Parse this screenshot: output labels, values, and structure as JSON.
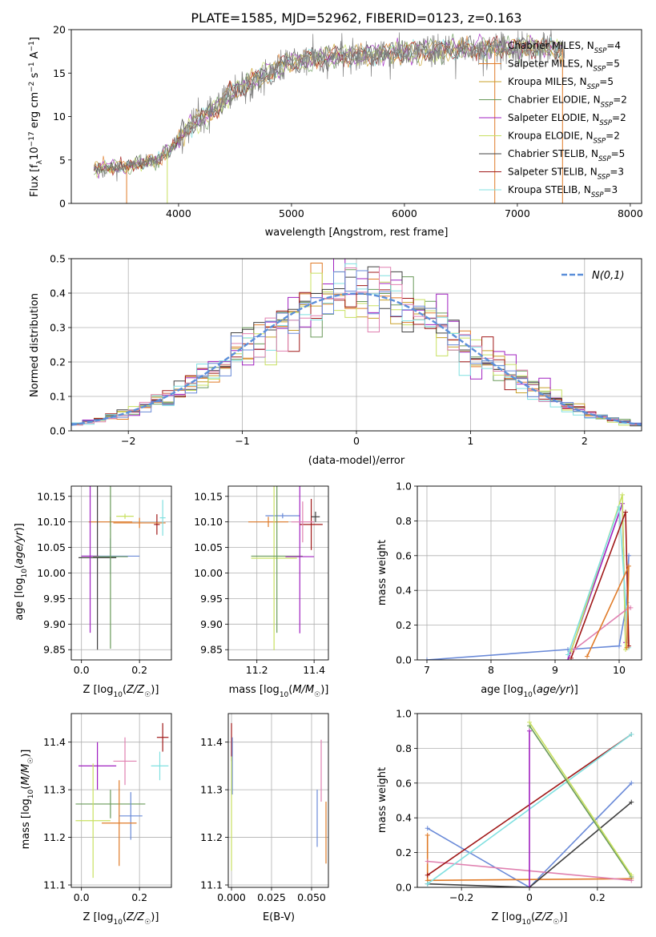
{
  "figure": {
    "title": "PLATE=1585, MJD=52962, FIBERID=0123, z=0.163"
  },
  "colors": {
    "series": [
      "#808080",
      "#e07b28",
      "#c8a028",
      "#6a9a5a",
      "#a020c0",
      "#c8e060",
      "#404040",
      "#a01818",
      "#80e0e0"
    ],
    "norm": "#5b8fd9",
    "pink": "#e080b0",
    "blue": "#6a8ad8",
    "grid": "#b0b0b0"
  },
  "chart_data": [
    {
      "type": "line",
      "panel": "spectrum",
      "xlabel": "wavelength [Angstrom, rest frame]",
      "ylabel": "Flux [f_λ 10^-17 erg cm^-2 s^-1 A^-1]",
      "xlim": [
        3050,
        8100
      ],
      "ylim": [
        0,
        20
      ],
      "xticks": [
        4000,
        5000,
        6000,
        7000,
        8000
      ],
      "yticks": [
        0,
        5,
        10,
        15,
        20
      ],
      "grid": false,
      "legend_position": "top-right",
      "series": [
        {
          "name": "Chabrier MILES, N_SSP=4"
        },
        {
          "name": "Salpeter MILES, N_SSP=5"
        },
        {
          "name": "Kroupa MILES, N_SSP=5"
        },
        {
          "name": "Chabrier ELODIE, N_SSP=2"
        },
        {
          "name": "Salpeter ELODIE, N_SSP=2"
        },
        {
          "name": "Kroupa ELODIE, N_SSP=2"
        },
        {
          "name": "Chabrier STELIB, N_SSP=5"
        },
        {
          "name": "Salpeter STELIB, N_SSP=3"
        },
        {
          "name": "Kroupa STELIB, N_SSP=3"
        }
      ],
      "continuum": [
        [
          3250,
          4.0
        ],
        [
          3500,
          4.2
        ],
        [
          3800,
          5.0
        ],
        [
          3950,
          6.5
        ],
        [
          4100,
          9.0
        ],
        [
          4300,
          10.5
        ],
        [
          4500,
          13.0
        ],
        [
          4800,
          15.0
        ],
        [
          5000,
          16.3
        ],
        [
          5300,
          16.8
        ],
        [
          5600,
          17.0
        ],
        [
          5900,
          17.3
        ],
        [
          6200,
          17.5
        ],
        [
          6500,
          17.7
        ],
        [
          6800,
          17.9
        ],
        [
          7100,
          18.0
        ],
        [
          7400,
          17.8
        ]
      ]
    },
    {
      "type": "line",
      "panel": "residual-distribution",
      "xlabel": "(data-model)/error",
      "ylabel": "Normed distribution",
      "xlim": [
        -2.5,
        2.5
      ],
      "ylim": [
        0,
        0.5
      ],
      "xticks": [
        -2,
        -1,
        0,
        1,
        2
      ],
      "yticks": [
        0.0,
        0.1,
        0.2,
        0.3,
        0.4,
        0.5
      ],
      "grid": true,
      "legend": "N(0,1)",
      "legend_position": "top-right",
      "bin_width": 0.1
    },
    {
      "type": "scatter",
      "panel": "age-vs-Z",
      "xlabel": "Z [log10(Z/Z☉)]",
      "ylabel": "age [log10(age/yr)]",
      "xlim": [
        -0.035,
        0.31
      ],
      "ylim": [
        9.83,
        10.17
      ],
      "xticks": [
        0.0,
        0.2
      ],
      "yticks": [
        9.85,
        9.9,
        9.95,
        10.0,
        10.05,
        10.1,
        10.15
      ],
      "grid": true,
      "points": [
        {
          "x": 0.1,
          "y": 10.1,
          "xerr": 0.075,
          "yerr": 0.01
        },
        {
          "x": 0.1,
          "y": 10.033,
          "xerr": 0.1,
          "yerr": 0.035
        },
        {
          "x": 0.15,
          "y": 10.111,
          "xerr": 0.03,
          "yerr": 0.005
        },
        {
          "x": 0.055,
          "y": 10.03,
          "xerr": 0.065,
          "yerr": 0.18
        },
        {
          "x": 0.03,
          "y": 10.033,
          "xerr": 0.03,
          "yerr": 0.15
        },
        {
          "x": 0.1,
          "y": 10.032,
          "xerr": 0.06,
          "yerr": 0.18
        },
        {
          "x": 0.26,
          "y": 10.095,
          "xerr": 0.01,
          "yerr": 0.02
        },
        {
          "x": 0.2,
          "y": 10.098,
          "xerr": 0.09,
          "yerr": 0.01
        },
        {
          "x": 0.28,
          "y": 10.108,
          "xerr": 0.01,
          "yerr": 0.035
        }
      ]
    },
    {
      "type": "scatter",
      "panel": "age-vs-mass",
      "xlabel": "mass [log10(M/M☉)]",
      "ylabel": "",
      "xlim": [
        11.1,
        11.45
      ],
      "ylim": [
        9.83,
        10.17
      ],
      "xticks": [
        11.2,
        11.4
      ],
      "yticks": [
        9.85,
        9.9,
        9.95,
        10.0,
        10.05,
        10.1,
        10.15
      ],
      "grid": true,
      "points": [
        {
          "x": 11.24,
          "y": 10.1,
          "xerr": 0.07,
          "yerr": 0.01
        },
        {
          "x": 11.29,
          "y": 10.112,
          "xerr": 0.06,
          "yerr": 0.005
        },
        {
          "x": 11.26,
          "y": 10.029,
          "xerr": 0.08,
          "yerr": 0.18
        },
        {
          "x": 11.27,
          "y": 10.033,
          "xerr": 0.09,
          "yerr": 0.15
        },
        {
          "x": 11.35,
          "y": 10.032,
          "xerr": 0.05,
          "yerr": 0.15
        },
        {
          "x": 11.39,
          "y": 10.095,
          "xerr": 0.04,
          "yerr": 0.05
        },
        {
          "x": 11.36,
          "y": 10.1,
          "xerr": 0.04,
          "yerr": 0.04
        },
        {
          "x": 11.405,
          "y": 10.11,
          "xerr": 0.015,
          "yerr": 0.01
        }
      ]
    },
    {
      "type": "line",
      "panel": "mass-weight-vs-age",
      "xlabel": "age [log10(age/yr)]",
      "ylabel": "mass weight",
      "xlim": [
        6.85,
        10.35
      ],
      "ylim": [
        0,
        1
      ],
      "xticks": [
        7,
        8,
        9,
        10
      ],
      "yticks": [
        0.0,
        0.2,
        0.4,
        0.6,
        0.8,
        1.0
      ],
      "grid": true,
      "lines": [
        [
          [
            7.0,
            0.0
          ],
          [
            9.2,
            0.06
          ],
          [
            10.0,
            0.08
          ],
          [
            10.12,
            0.33
          ],
          [
            10.15,
            0.6
          ]
        ],
        [
          [
            9.2,
            0.0
          ],
          [
            10.05,
            0.9
          ],
          [
            10.1,
            0.1
          ]
        ],
        [
          [
            9.25,
            0.05
          ],
          [
            10.05,
            0.95
          ],
          [
            10.1,
            0.06
          ]
        ],
        [
          [
            9.2,
            0.03
          ],
          [
            10.0,
            0.88
          ],
          [
            10.15,
            0.07
          ]
        ],
        [
          [
            9.25,
            0.01
          ],
          [
            10.1,
            0.85
          ],
          [
            10.15,
            0.08
          ]
        ],
        [
          [
            9.3,
            0.06
          ],
          [
            10.15,
            0.3
          ],
          [
            10.18,
            0.3
          ]
        ],
        [
          [
            9.5,
            0.02
          ],
          [
            10.15,
            0.54
          ],
          [
            10.12,
            0.07
          ]
        ]
      ]
    },
    {
      "type": "scatter",
      "panel": "mass-vs-Z",
      "xlabel": "Z [log10(Z/Z☉)]",
      "ylabel": "mass [log10(M/M☉)]",
      "xlim": [
        -0.035,
        0.31
      ],
      "ylim": [
        11.095,
        11.46
      ],
      "xticks": [
        0.0,
        0.2
      ],
      "yticks": [
        11.1,
        11.2,
        11.3,
        11.4
      ],
      "grid": true,
      "points": [
        {
          "x": 0.055,
          "y": 11.35,
          "xerr": 0.065,
          "yerr": 0.05
        },
        {
          "x": 0.1,
          "y": 11.27,
          "xerr": 0.12,
          "yerr": 0.03
        },
        {
          "x": 0.04,
          "y": 11.235,
          "xerr": 0.06,
          "yerr": 0.12
        },
        {
          "x": 0.15,
          "y": 11.36,
          "xerr": 0.04,
          "yerr": 0.05
        },
        {
          "x": 0.17,
          "y": 11.245,
          "xerr": 0.04,
          "yerr": 0.05
        },
        {
          "x": 0.13,
          "y": 11.23,
          "xerr": 0.06,
          "yerr": 0.09
        },
        {
          "x": 0.28,
          "y": 11.41,
          "xerr": 0.02,
          "yerr": 0.03
        },
        {
          "x": 0.27,
          "y": 11.35,
          "xerr": 0.03,
          "yerr": 0.03
        }
      ]
    },
    {
      "type": "scatter",
      "panel": "mass-vs-EBV",
      "xlabel": "E(B-V)",
      "ylabel": "",
      "xlim": [
        -0.002,
        0.0605
      ],
      "ylim": [
        11.095,
        11.46
      ],
      "xticks": [
        0.0,
        0.025,
        0.05
      ],
      "yticks": [
        11.1,
        11.2,
        11.3,
        11.4
      ],
      "grid": true,
      "points": [
        {
          "x": 0.0,
          "y": 11.4,
          "xerr": 0,
          "yerr": 0.04
        },
        {
          "x": 0.0005,
          "y": 11.35,
          "xerr": 0,
          "yerr": 0.06
        },
        {
          "x": 0.0,
          "y": 11.25,
          "xerr": 0,
          "yerr": 0.12
        },
        {
          "x": 0.0535,
          "y": 11.24,
          "xerr": 0,
          "yerr": 0.06
        },
        {
          "x": 0.056,
          "y": 11.34,
          "xerr": 0,
          "yerr": 0.065
        },
        {
          "x": 0.059,
          "y": 11.21,
          "xerr": 0,
          "yerr": 0.065
        }
      ]
    },
    {
      "type": "line",
      "panel": "mass-weight-vs-Z",
      "xlabel": "Z [log10(Z/Z☉)]",
      "ylabel": "mass weight",
      "xlim": [
        -0.33,
        0.33
      ],
      "ylim": [
        0,
        1
      ],
      "xticks": [
        -0.2,
        0.0,
        0.2
      ],
      "yticks": [
        0.0,
        0.2,
        0.4,
        0.6,
        0.8,
        1.0
      ],
      "grid": true,
      "lines": [
        [
          [
            -0.3,
            0.34
          ],
          [
            0.0,
            0.0
          ],
          [
            0.3,
            0.6
          ]
        ],
        [
          [
            -0.3,
            0.3
          ],
          [
            -0.3,
            0.04
          ],
          [
            0.3,
            0.05
          ]
        ],
        [
          [
            -0.3,
            0.15
          ],
          [
            0.3,
            0.04
          ]
        ],
        [
          [
            -0.3,
            0.02
          ],
          [
            0.0,
            0.0
          ],
          [
            0.3,
            0.49
          ]
        ],
        [
          [
            -0.3,
            0.07
          ],
          [
            0.3,
            0.88
          ]
        ],
        [
          [
            -0.3,
            0.02
          ],
          [
            0.3,
            0.88
          ]
        ],
        [
          [
            0.0,
            0.93
          ],
          [
            0.3,
            0.06
          ]
        ],
        [
          [
            0.0,
            0.9
          ],
          [
            0.0,
            0.0
          ]
        ],
        [
          [
            0.0,
            0.95
          ],
          [
            0.3,
            0.07
          ]
        ]
      ]
    }
  ]
}
